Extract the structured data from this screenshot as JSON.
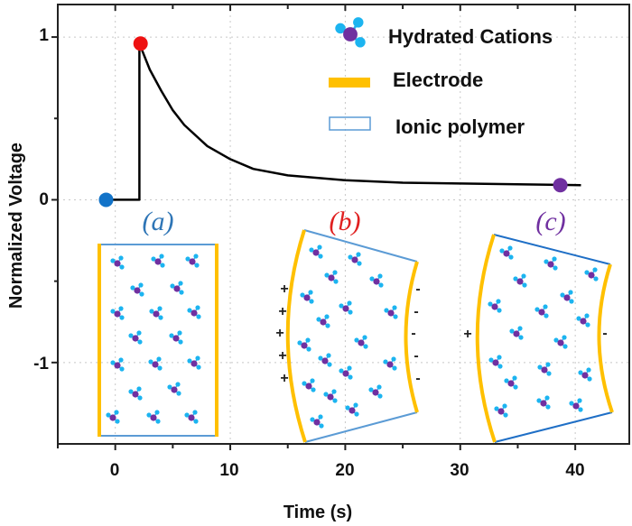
{
  "chart_data": {
    "type": "line",
    "xlabel": "Time (s)",
    "ylabel": "Normalized Voltage",
    "xlim": [
      -5,
      44.7
    ],
    "ylim": [
      -1.5,
      1.2
    ],
    "xticks": [
      "0",
      "10",
      "20",
      "30",
      "40"
    ],
    "yticks": [
      "1",
      "0",
      "-1"
    ],
    "grid": true,
    "series": [
      {
        "color": "#000000",
        "points": [
          [
            -0.8,
            0
          ],
          [
            2.1,
            0
          ],
          [
            2.1,
            0.96
          ],
          [
            3,
            0.8
          ],
          [
            4,
            0.67
          ],
          [
            5,
            0.55
          ],
          [
            6,
            0.46
          ],
          [
            8,
            0.33
          ],
          [
            10,
            0.25
          ],
          [
            12,
            0.19
          ],
          [
            15,
            0.15
          ],
          [
            20,
            0.12
          ],
          [
            25,
            0.105
          ],
          [
            30,
            0.1
          ],
          [
            40.5,
            0.09
          ]
        ]
      }
    ],
    "markers": [
      {
        "x": -0.8,
        "y": 0,
        "color": "#1273c8"
      },
      {
        "x": 2.2,
        "y": 0.96,
        "color": "#ee1111"
      },
      {
        "x": 38.7,
        "y": 0.09,
        "color": "#7030a0"
      }
    ],
    "legend": {
      "placement": "top-right",
      "entries": [
        {
          "label": "Hydrated Cations",
          "icon": "cation-icon"
        },
        {
          "label": "Electrode",
          "icon": "yellow-bar",
          "color": "#ffc000"
        },
        {
          "label": "Ionic polymer",
          "icon": "outline-rect",
          "color": "#5b9bd5"
        }
      ]
    },
    "annotations": {
      "panels": [
        {
          "label": "(a)",
          "color": "#2e75b6"
        },
        {
          "label": "(b)",
          "color": "#e02020"
        },
        {
          "label": "(c)",
          "color": "#7030a0"
        }
      ],
      "plus": "+",
      "minus": "-"
    }
  }
}
